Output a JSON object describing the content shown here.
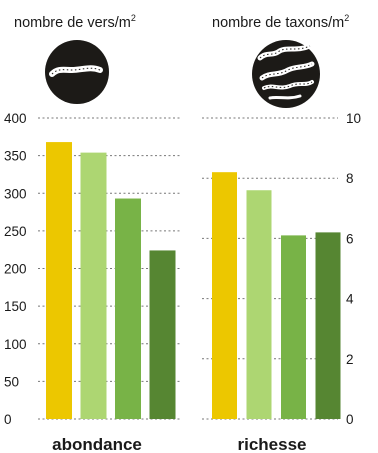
{
  "colors": {
    "bar_series": [
      "#ecc700",
      "#add672",
      "#78b347",
      "#568632"
    ],
    "gridline": "#777777",
    "icon_bg": "#1c1a17",
    "text": "#1a1a1a"
  },
  "chart_data": [
    {
      "type": "bar",
      "title": "nombre de vers/m",
      "title_superscript": "2",
      "xlabel": "abondance",
      "ylabel": "",
      "icon": "single-worm-icon",
      "ylim": [
        0,
        400
      ],
      "yticks": [
        0,
        50,
        100,
        150,
        200,
        250,
        300,
        350,
        400
      ],
      "values": [
        368,
        354,
        293,
        224
      ],
      "axis_side": "left",
      "grid": true
    },
    {
      "type": "bar",
      "title": "nombre de taxons/m",
      "title_superscript": "2",
      "xlabel": "richesse",
      "ylabel": "",
      "icon": "multiple-worms-icon",
      "ylim": [
        0,
        10
      ],
      "yticks": [
        0,
        2,
        4,
        6,
        8,
        10
      ],
      "values": [
        8.2,
        7.6,
        6.1,
        6.2
      ],
      "axis_side": "right",
      "grid": true
    }
  ]
}
